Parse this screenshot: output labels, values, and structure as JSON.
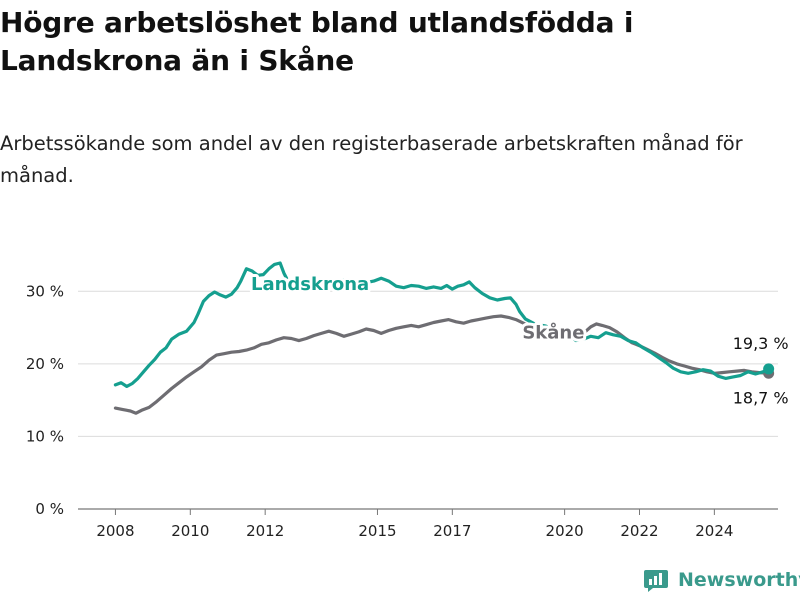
{
  "title": "Högre arbetslöshet bland utlandsfödda i Landskrona än i Skåne",
  "subtitle": "Arbetssökande som andel av den registerbaserade arbetskraften månad för månad.",
  "brand": {
    "name": "Newsworthy",
    "icon": "newsworthy-logo-icon",
    "color": "#3a9a8c"
  },
  "chart_data": {
    "type": "line",
    "x_ticks": [
      2008,
      2010,
      2012,
      2015,
      2017,
      2020,
      2022,
      2024
    ],
    "y_ticks": [
      {
        "value": 0,
        "label": "0 %"
      },
      {
        "value": 10,
        "label": "10 %"
      },
      {
        "value": 20,
        "label": "20 %"
      },
      {
        "value": 30,
        "label": "30 %"
      }
    ],
    "xlim": [
      2007.0,
      2025.7
    ],
    "ylim": [
      0,
      35
    ],
    "grid": true,
    "series": [
      {
        "name": "Landskrona",
        "color": "#159f8f",
        "label_at": {
          "x": 2013.2,
          "y": 30.2
        },
        "end_label": "19,3 %",
        "points": [
          [
            2008.0,
            17.1
          ],
          [
            2008.15,
            17.4
          ],
          [
            2008.3,
            16.9
          ],
          [
            2008.45,
            17.3
          ],
          [
            2008.6,
            18.0
          ],
          [
            2008.75,
            18.9
          ],
          [
            2008.9,
            19.8
          ],
          [
            2009.05,
            20.6
          ],
          [
            2009.2,
            21.6
          ],
          [
            2009.35,
            22.2
          ],
          [
            2009.5,
            23.4
          ],
          [
            2009.7,
            24.1
          ],
          [
            2009.9,
            24.5
          ],
          [
            2010.1,
            25.7
          ],
          [
            2010.2,
            26.8
          ],
          [
            2010.35,
            28.6
          ],
          [
            2010.5,
            29.4
          ],
          [
            2010.65,
            29.9
          ],
          [
            2010.8,
            29.5
          ],
          [
            2010.95,
            29.2
          ],
          [
            2011.1,
            29.6
          ],
          [
            2011.25,
            30.5
          ],
          [
            2011.35,
            31.4
          ],
          [
            2011.5,
            33.1
          ],
          [
            2011.65,
            32.8
          ],
          [
            2011.8,
            32.2
          ],
          [
            2011.95,
            32.3
          ],
          [
            2012.1,
            33.1
          ],
          [
            2012.25,
            33.7
          ],
          [
            2012.4,
            33.9
          ],
          [
            2012.5,
            32.5
          ],
          [
            2012.6,
            31.5
          ],
          [
            2012.7,
            31.6
          ],
          [
            2012.9,
            31.7
          ],
          [
            2013.1,
            31.4
          ],
          [
            2013.3,
            31.2
          ],
          [
            2013.5,
            30.6
          ],
          [
            2013.7,
            31.0
          ],
          [
            2013.9,
            31.1
          ],
          [
            2014.1,
            31.6
          ],
          [
            2014.3,
            31.3
          ],
          [
            2014.5,
            31.0
          ],
          [
            2014.7,
            31.2
          ],
          [
            2014.9,
            31.4
          ],
          [
            2015.1,
            31.8
          ],
          [
            2015.3,
            31.4
          ],
          [
            2015.5,
            30.7
          ],
          [
            2015.7,
            30.5
          ],
          [
            2015.9,
            30.8
          ],
          [
            2016.1,
            30.7
          ],
          [
            2016.3,
            30.4
          ],
          [
            2016.5,
            30.6
          ],
          [
            2016.7,
            30.4
          ],
          [
            2016.85,
            30.8
          ],
          [
            2017.0,
            30.3
          ],
          [
            2017.15,
            30.7
          ],
          [
            2017.3,
            30.9
          ],
          [
            2017.45,
            31.3
          ],
          [
            2017.6,
            30.5
          ],
          [
            2017.8,
            29.7
          ],
          [
            2018.0,
            29.1
          ],
          [
            2018.2,
            28.8
          ],
          [
            2018.4,
            29.0
          ],
          [
            2018.55,
            29.1
          ],
          [
            2018.7,
            28.2
          ],
          [
            2018.8,
            27.2
          ],
          [
            2018.95,
            26.2
          ],
          [
            2019.2,
            25.5
          ],
          [
            2019.5,
            25.2
          ],
          [
            2019.8,
            24.6
          ],
          [
            2020.1,
            24.1
          ],
          [
            2020.3,
            23.2
          ],
          [
            2020.5,
            23.4
          ],
          [
            2020.7,
            23.8
          ],
          [
            2020.9,
            23.6
          ],
          [
            2021.1,
            24.3
          ],
          [
            2021.3,
            24.0
          ],
          [
            2021.5,
            23.8
          ],
          [
            2021.7,
            23.2
          ],
          [
            2021.9,
            22.9
          ],
          [
            2022.1,
            22.2
          ],
          [
            2022.3,
            21.6
          ],
          [
            2022.5,
            20.9
          ],
          [
            2022.7,
            20.2
          ],
          [
            2022.9,
            19.4
          ],
          [
            2023.1,
            18.9
          ],
          [
            2023.3,
            18.7
          ],
          [
            2023.5,
            18.9
          ],
          [
            2023.7,
            19.2
          ],
          [
            2023.9,
            19.0
          ],
          [
            2024.1,
            18.3
          ],
          [
            2024.3,
            18.0
          ],
          [
            2024.5,
            18.2
          ],
          [
            2024.7,
            18.4
          ],
          [
            2024.9,
            18.9
          ],
          [
            2025.1,
            18.6
          ],
          [
            2025.3,
            18.9
          ],
          [
            2025.45,
            19.3
          ]
        ]
      },
      {
        "name": "Skåne",
        "color": "#6e6d72",
        "label_at": {
          "x": 2019.7,
          "y": 23.5
        },
        "end_label": "18,7 %",
        "points": [
          [
            2008.0,
            13.9
          ],
          [
            2008.2,
            13.7
          ],
          [
            2008.4,
            13.5
          ],
          [
            2008.55,
            13.2
          ],
          [
            2008.7,
            13.6
          ],
          [
            2008.9,
            14.0
          ],
          [
            2009.1,
            14.8
          ],
          [
            2009.3,
            15.7
          ],
          [
            2009.5,
            16.6
          ],
          [
            2009.7,
            17.4
          ],
          [
            2009.9,
            18.2
          ],
          [
            2010.1,
            18.9
          ],
          [
            2010.3,
            19.6
          ],
          [
            2010.5,
            20.5
          ],
          [
            2010.7,
            21.2
          ],
          [
            2010.9,
            21.4
          ],
          [
            2011.1,
            21.6
          ],
          [
            2011.3,
            21.7
          ],
          [
            2011.5,
            21.9
          ],
          [
            2011.7,
            22.2
          ],
          [
            2011.9,
            22.7
          ],
          [
            2012.1,
            22.9
          ],
          [
            2012.3,
            23.3
          ],
          [
            2012.5,
            23.6
          ],
          [
            2012.7,
            23.5
          ],
          [
            2012.9,
            23.2
          ],
          [
            2013.1,
            23.5
          ],
          [
            2013.3,
            23.9
          ],
          [
            2013.5,
            24.2
          ],
          [
            2013.7,
            24.5
          ],
          [
            2013.9,
            24.2
          ],
          [
            2014.1,
            23.8
          ],
          [
            2014.3,
            24.1
          ],
          [
            2014.5,
            24.4
          ],
          [
            2014.7,
            24.8
          ],
          [
            2014.9,
            24.6
          ],
          [
            2015.1,
            24.2
          ],
          [
            2015.3,
            24.6
          ],
          [
            2015.5,
            24.9
          ],
          [
            2015.7,
            25.1
          ],
          [
            2015.9,
            25.3
          ],
          [
            2016.1,
            25.1
          ],
          [
            2016.3,
            25.4
          ],
          [
            2016.5,
            25.7
          ],
          [
            2016.7,
            25.9
          ],
          [
            2016.9,
            26.1
          ],
          [
            2017.1,
            25.8
          ],
          [
            2017.3,
            25.6
          ],
          [
            2017.5,
            25.9
          ],
          [
            2017.7,
            26.1
          ],
          [
            2017.9,
            26.3
          ],
          [
            2018.1,
            26.5
          ],
          [
            2018.3,
            26.6
          ],
          [
            2018.5,
            26.4
          ],
          [
            2018.7,
            26.1
          ],
          [
            2018.9,
            25.6
          ],
          [
            2019.1,
            25.1
          ],
          [
            2019.3,
            24.9
          ],
          [
            2019.5,
            24.7
          ],
          [
            2019.7,
            24.3
          ],
          [
            2019.9,
            24.0
          ],
          [
            2020.1,
            23.6
          ],
          [
            2020.3,
            23.4
          ],
          [
            2020.5,
            24.2
          ],
          [
            2020.7,
            25.1
          ],
          [
            2020.85,
            25.5
          ],
          [
            2021.0,
            25.3
          ],
          [
            2021.2,
            25.0
          ],
          [
            2021.4,
            24.4
          ],
          [
            2021.6,
            23.6
          ],
          [
            2021.8,
            22.9
          ],
          [
            2022.0,
            22.5
          ],
          [
            2022.2,
            22.0
          ],
          [
            2022.4,
            21.5
          ],
          [
            2022.6,
            20.9
          ],
          [
            2022.8,
            20.4
          ],
          [
            2023.0,
            20.0
          ],
          [
            2023.2,
            19.7
          ],
          [
            2023.4,
            19.4
          ],
          [
            2023.6,
            19.2
          ],
          [
            2023.8,
            18.9
          ],
          [
            2024.0,
            18.7
          ],
          [
            2024.2,
            18.8
          ],
          [
            2024.4,
            18.9
          ],
          [
            2024.6,
            19.0
          ],
          [
            2024.8,
            19.1
          ],
          [
            2025.0,
            18.9
          ],
          [
            2025.2,
            18.8
          ],
          [
            2025.45,
            18.7
          ]
        ]
      }
    ]
  }
}
